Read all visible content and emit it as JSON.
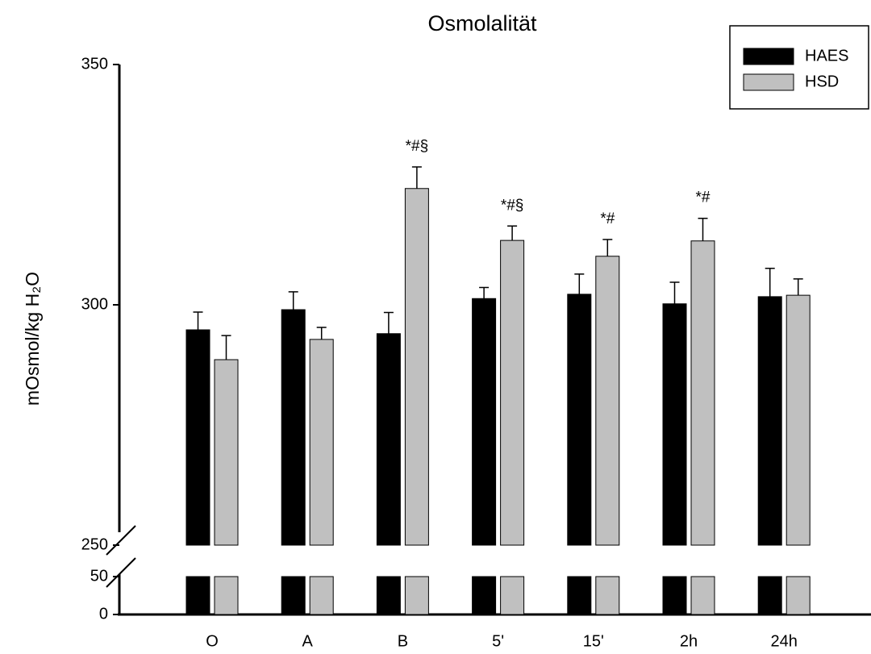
{
  "chart_data": {
    "type": "bar",
    "title": "Osmolalität",
    "y_label": "mOsmol/kg H₂O",
    "categories": [
      "O",
      "A",
      "B",
      "5'",
      "15'",
      "2h",
      "24h"
    ],
    "series": [
      {
        "name": "HAES",
        "color": "#000000",
        "values": [
          294.8,
          299.0,
          294.0,
          301.3,
          302.2,
          300.2,
          301.7
        ],
        "errors": [
          3.7,
          3.7,
          4.4,
          2.3,
          4.2,
          4.5,
          5.9
        ]
      },
      {
        "name": "HSD",
        "color": "#c0c0c0",
        "values": [
          288.6,
          292.8,
          324.2,
          313.4,
          310.1,
          313.3,
          302.0
        ],
        "errors": [
          5.0,
          2.5,
          4.5,
          3.0,
          3.5,
          4.7,
          3.4
        ]
      }
    ],
    "annotations": [
      null,
      null,
      "*#§",
      "*#§",
      "*#",
      "*#",
      null
    ],
    "ylim": [
      0,
      350
    ],
    "axis_break": [
      50,
      250
    ],
    "yticks": [
      0,
      50,
      250,
      300,
      350
    ],
    "legend": "upper right"
  }
}
